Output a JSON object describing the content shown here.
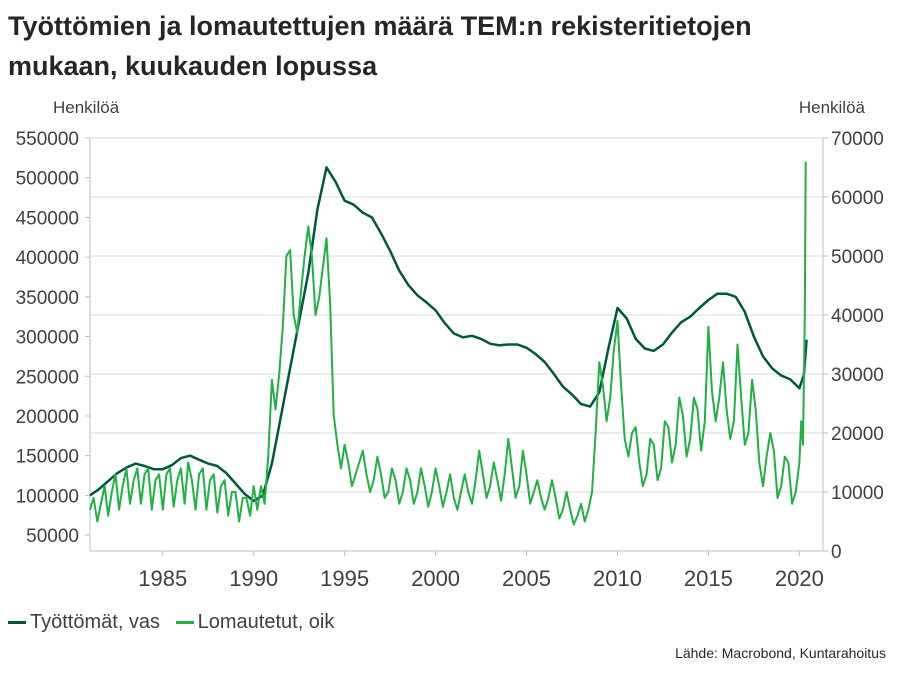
{
  "title": {
    "line1": "Työttömien ja lomautettujen määrä TEM:n rekisteritietojen",
    "line2": "mukaan, kuukauden lopussa"
  },
  "source": "Lähde: Macrobond, Kuntarahoitus",
  "colors": {
    "tyottomat": "#00573f",
    "lomautetut": "#1fb141",
    "grid": "#d9d9d9",
    "axis": "#bfbfbf"
  },
  "chart_data": {
    "type": "line",
    "y_left": {
      "label": "Henkilöä",
      "min": 30000,
      "max": 550000,
      "ticks": [
        50000,
        100000,
        150000,
        200000,
        250000,
        300000,
        350000,
        400000,
        450000,
        500000,
        550000
      ]
    },
    "y_right": {
      "label": "Henkilöä",
      "min": 0,
      "max": 70000,
      "ticks": [
        0,
        10000,
        20000,
        30000,
        40000,
        50000,
        60000,
        70000
      ]
    },
    "x": {
      "min": 1981,
      "max": 2021.3,
      "ticks": [
        1985,
        1990,
        1995,
        2000,
        2005,
        2010,
        2015,
        2020
      ]
    },
    "grid": true,
    "legend_position": "bottom-left",
    "series": [
      {
        "name": "Työttömät, vas",
        "axis": "left",
        "points": [
          [
            1981.0,
            100000
          ],
          [
            1981.5,
            108000
          ],
          [
            1982.0,
            118000
          ],
          [
            1982.5,
            128000
          ],
          [
            1983.0,
            135000
          ],
          [
            1983.5,
            140000
          ],
          [
            1984.0,
            137000
          ],
          [
            1984.5,
            133000
          ],
          [
            1985.0,
            133000
          ],
          [
            1985.5,
            138000
          ],
          [
            1986.0,
            147000
          ],
          [
            1986.5,
            150000
          ],
          [
            1987.0,
            145000
          ],
          [
            1987.5,
            140000
          ],
          [
            1988.0,
            137000
          ],
          [
            1988.5,
            128000
          ],
          [
            1989.0,
            115000
          ],
          [
            1989.5,
            102000
          ],
          [
            1990.0,
            93000
          ],
          [
            1990.5,
            100000
          ],
          [
            1991.0,
            140000
          ],
          [
            1991.5,
            200000
          ],
          [
            1992.0,
            260000
          ],
          [
            1992.5,
            320000
          ],
          [
            1993.0,
            380000
          ],
          [
            1993.5,
            460000
          ],
          [
            1994.0,
            513000
          ],
          [
            1994.5,
            495000
          ],
          [
            1995.0,
            471000
          ],
          [
            1995.5,
            466000
          ],
          [
            1996.0,
            456000
          ],
          [
            1996.5,
            450000
          ],
          [
            1997.0,
            430000
          ],
          [
            1997.5,
            408000
          ],
          [
            1998.0,
            383000
          ],
          [
            1998.5,
            365000
          ],
          [
            1999.0,
            352000
          ],
          [
            1999.5,
            343000
          ],
          [
            2000.0,
            333000
          ],
          [
            2000.5,
            317000
          ],
          [
            2001.0,
            304000
          ],
          [
            2001.5,
            299000
          ],
          [
            2002.0,
            301000
          ],
          [
            2002.5,
            297000
          ],
          [
            2003.0,
            291000
          ],
          [
            2003.5,
            289000
          ],
          [
            2004.0,
            290000
          ],
          [
            2004.5,
            290000
          ],
          [
            2005.0,
            286000
          ],
          [
            2005.5,
            278000
          ],
          [
            2006.0,
            268000
          ],
          [
            2006.5,
            253000
          ],
          [
            2007.0,
            237000
          ],
          [
            2007.5,
            227000
          ],
          [
            2008.0,
            215000
          ],
          [
            2008.5,
            212000
          ],
          [
            2009.0,
            230000
          ],
          [
            2009.5,
            285000
          ],
          [
            2010.0,
            336000
          ],
          [
            2010.5,
            323000
          ],
          [
            2011.0,
            297000
          ],
          [
            2011.5,
            285000
          ],
          [
            2012.0,
            282000
          ],
          [
            2012.5,
            290000
          ],
          [
            2013.0,
            305000
          ],
          [
            2013.5,
            318000
          ],
          [
            2014.0,
            325000
          ],
          [
            2014.5,
            336000
          ],
          [
            2015.0,
            346000
          ],
          [
            2015.5,
            354000
          ],
          [
            2016.0,
            354000
          ],
          [
            2016.5,
            350000
          ],
          [
            2017.0,
            331000
          ],
          [
            2017.5,
            300000
          ],
          [
            2018.0,
            275000
          ],
          [
            2018.5,
            260000
          ],
          [
            2019.0,
            251000
          ],
          [
            2019.5,
            246000
          ],
          [
            2020.0,
            235000
          ],
          [
            2020.25,
            252000
          ],
          [
            2020.4,
            296000
          ]
        ]
      },
      {
        "name": "Lomautetut, oik",
        "axis": "right",
        "points": [
          [
            1981.0,
            7000
          ],
          [
            1981.2,
            9000
          ],
          [
            1981.4,
            5000
          ],
          [
            1981.6,
            8000
          ],
          [
            1981.8,
            11000
          ],
          [
            1982.0,
            6000
          ],
          [
            1982.2,
            10000
          ],
          [
            1982.4,
            13000
          ],
          [
            1982.6,
            7000
          ],
          [
            1982.8,
            11000
          ],
          [
            1983.0,
            14000
          ],
          [
            1983.2,
            8000
          ],
          [
            1983.4,
            12000
          ],
          [
            1983.6,
            14000
          ],
          [
            1983.8,
            8000
          ],
          [
            1984.0,
            13000
          ],
          [
            1984.2,
            14000
          ],
          [
            1984.4,
            7000
          ],
          [
            1984.6,
            12000
          ],
          [
            1984.8,
            13000
          ],
          [
            1985.0,
            7000
          ],
          [
            1985.2,
            13000
          ],
          [
            1985.4,
            14000
          ],
          [
            1985.6,
            7500
          ],
          [
            1985.8,
            12000
          ],
          [
            1986.0,
            14000
          ],
          [
            1986.2,
            8000
          ],
          [
            1986.4,
            15000
          ],
          [
            1986.6,
            12000
          ],
          [
            1986.8,
            7000
          ],
          [
            1987.0,
            13000
          ],
          [
            1987.2,
            14000
          ],
          [
            1987.4,
            7000
          ],
          [
            1987.6,
            12000
          ],
          [
            1987.8,
            13000
          ],
          [
            1988.0,
            6500
          ],
          [
            1988.2,
            11000
          ],
          [
            1988.4,
            12000
          ],
          [
            1988.6,
            6000
          ],
          [
            1988.8,
            10000
          ],
          [
            1989.0,
            10000
          ],
          [
            1989.2,
            5000
          ],
          [
            1989.4,
            9000
          ],
          [
            1989.6,
            9000
          ],
          [
            1989.8,
            6000
          ],
          [
            1990.0,
            11000
          ],
          [
            1990.2,
            7000
          ],
          [
            1990.4,
            11000
          ],
          [
            1990.6,
            8000
          ],
          [
            1990.8,
            16000
          ],
          [
            1991.0,
            29000
          ],
          [
            1991.2,
            24000
          ],
          [
            1991.4,
            30000
          ],
          [
            1991.6,
            38000
          ],
          [
            1991.8,
            50000
          ],
          [
            1992.0,
            51000
          ],
          [
            1992.2,
            40000
          ],
          [
            1992.4,
            37000
          ],
          [
            1992.6,
            44000
          ],
          [
            1992.8,
            50000
          ],
          [
            1993.0,
            55000
          ],
          [
            1993.2,
            50000
          ],
          [
            1993.4,
            40000
          ],
          [
            1993.6,
            43000
          ],
          [
            1993.8,
            48000
          ],
          [
            1994.0,
            53000
          ],
          [
            1994.2,
            42000
          ],
          [
            1994.4,
            23000
          ],
          [
            1994.6,
            18000
          ],
          [
            1994.8,
            14000
          ],
          [
            1995.0,
            18000
          ],
          [
            1995.2,
            15000
          ],
          [
            1995.4,
            11000
          ],
          [
            1995.6,
            13000
          ],
          [
            1995.8,
            15000
          ],
          [
            1996.0,
            17000
          ],
          [
            1996.2,
            13000
          ],
          [
            1996.4,
            10000
          ],
          [
            1996.6,
            12000
          ],
          [
            1996.8,
            16000
          ],
          [
            1997.0,
            13000
          ],
          [
            1997.2,
            9000
          ],
          [
            1997.4,
            10000
          ],
          [
            1997.6,
            14000
          ],
          [
            1997.8,
            12000
          ],
          [
            1998.0,
            8000
          ],
          [
            1998.2,
            10000
          ],
          [
            1998.4,
            14000
          ],
          [
            1998.6,
            12000
          ],
          [
            1998.8,
            8000
          ],
          [
            1999.0,
            10000
          ],
          [
            1999.2,
            14000
          ],
          [
            1999.4,
            11000
          ],
          [
            1999.6,
            7500
          ],
          [
            1999.8,
            10000
          ],
          [
            2000.0,
            14000
          ],
          [
            2000.2,
            11000
          ],
          [
            2000.4,
            7500
          ],
          [
            2000.6,
            10000
          ],
          [
            2000.8,
            13000
          ],
          [
            2001.0,
            9000
          ],
          [
            2001.2,
            7000
          ],
          [
            2001.4,
            10000
          ],
          [
            2001.6,
            13000
          ],
          [
            2001.8,
            10000
          ],
          [
            2002.0,
            8000
          ],
          [
            2002.2,
            12000
          ],
          [
            2002.4,
            17000
          ],
          [
            2002.6,
            13000
          ],
          [
            2002.8,
            9000
          ],
          [
            2003.0,
            11000
          ],
          [
            2003.2,
            15000
          ],
          [
            2003.4,
            12000
          ],
          [
            2003.6,
            8500
          ],
          [
            2003.8,
            13000
          ],
          [
            2004.0,
            19000
          ],
          [
            2004.2,
            14000
          ],
          [
            2004.4,
            9000
          ],
          [
            2004.6,
            11000
          ],
          [
            2004.8,
            17000
          ],
          [
            2005.0,
            13000
          ],
          [
            2005.2,
            8000
          ],
          [
            2005.4,
            10000
          ],
          [
            2005.6,
            12000
          ],
          [
            2005.8,
            9000
          ],
          [
            2006.0,
            7000
          ],
          [
            2006.2,
            9000
          ],
          [
            2006.4,
            12000
          ],
          [
            2006.6,
            9000
          ],
          [
            2006.8,
            5500
          ],
          [
            2007.0,
            7000
          ],
          [
            2007.2,
            10000
          ],
          [
            2007.4,
            7000
          ],
          [
            2007.6,
            4500
          ],
          [
            2007.8,
            6000
          ],
          [
            2008.0,
            8000
          ],
          [
            2008.2,
            5000
          ],
          [
            2008.4,
            7000
          ],
          [
            2008.6,
            10000
          ],
          [
            2008.8,
            20000
          ],
          [
            2009.0,
            32000
          ],
          [
            2009.2,
            28000
          ],
          [
            2009.4,
            22000
          ],
          [
            2009.6,
            26000
          ],
          [
            2009.8,
            34000
          ],
          [
            2010.0,
            39000
          ],
          [
            2010.2,
            28000
          ],
          [
            2010.4,
            19000
          ],
          [
            2010.6,
            16000
          ],
          [
            2010.8,
            20000
          ],
          [
            2011.0,
            21000
          ],
          [
            2011.2,
            15000
          ],
          [
            2011.4,
            11000
          ],
          [
            2011.6,
            13000
          ],
          [
            2011.8,
            19000
          ],
          [
            2012.0,
            18000
          ],
          [
            2012.2,
            12000
          ],
          [
            2012.4,
            14000
          ],
          [
            2012.6,
            22000
          ],
          [
            2012.8,
            21000
          ],
          [
            2013.0,
            15000
          ],
          [
            2013.2,
            18000
          ],
          [
            2013.4,
            26000
          ],
          [
            2013.6,
            23000
          ],
          [
            2013.8,
            16000
          ],
          [
            2014.0,
            19000
          ],
          [
            2014.2,
            26000
          ],
          [
            2014.4,
            24000
          ],
          [
            2014.6,
            17000
          ],
          [
            2014.8,
            22000
          ],
          [
            2015.0,
            38000
          ],
          [
            2015.2,
            27000
          ],
          [
            2015.4,
            22000
          ],
          [
            2015.6,
            26000
          ],
          [
            2015.8,
            32000
          ],
          [
            2016.0,
            24000
          ],
          [
            2016.2,
            19000
          ],
          [
            2016.4,
            22000
          ],
          [
            2016.6,
            35000
          ],
          [
            2016.8,
            26000
          ],
          [
            2017.0,
            18000
          ],
          [
            2017.2,
            20000
          ],
          [
            2017.4,
            29000
          ],
          [
            2017.6,
            24000
          ],
          [
            2017.8,
            15000
          ],
          [
            2018.0,
            11000
          ],
          [
            2018.2,
            16000
          ],
          [
            2018.4,
            20000
          ],
          [
            2018.6,
            17000
          ],
          [
            2018.8,
            9000
          ],
          [
            2019.0,
            11000
          ],
          [
            2019.2,
            16000
          ],
          [
            2019.4,
            15000
          ],
          [
            2019.6,
            8000
          ],
          [
            2019.8,
            10000
          ],
          [
            2020.0,
            15000
          ],
          [
            2020.1,
            22000
          ],
          [
            2020.2,
            18000
          ],
          [
            2020.3,
            40000
          ],
          [
            2020.35,
            66000
          ]
        ]
      }
    ]
  }
}
